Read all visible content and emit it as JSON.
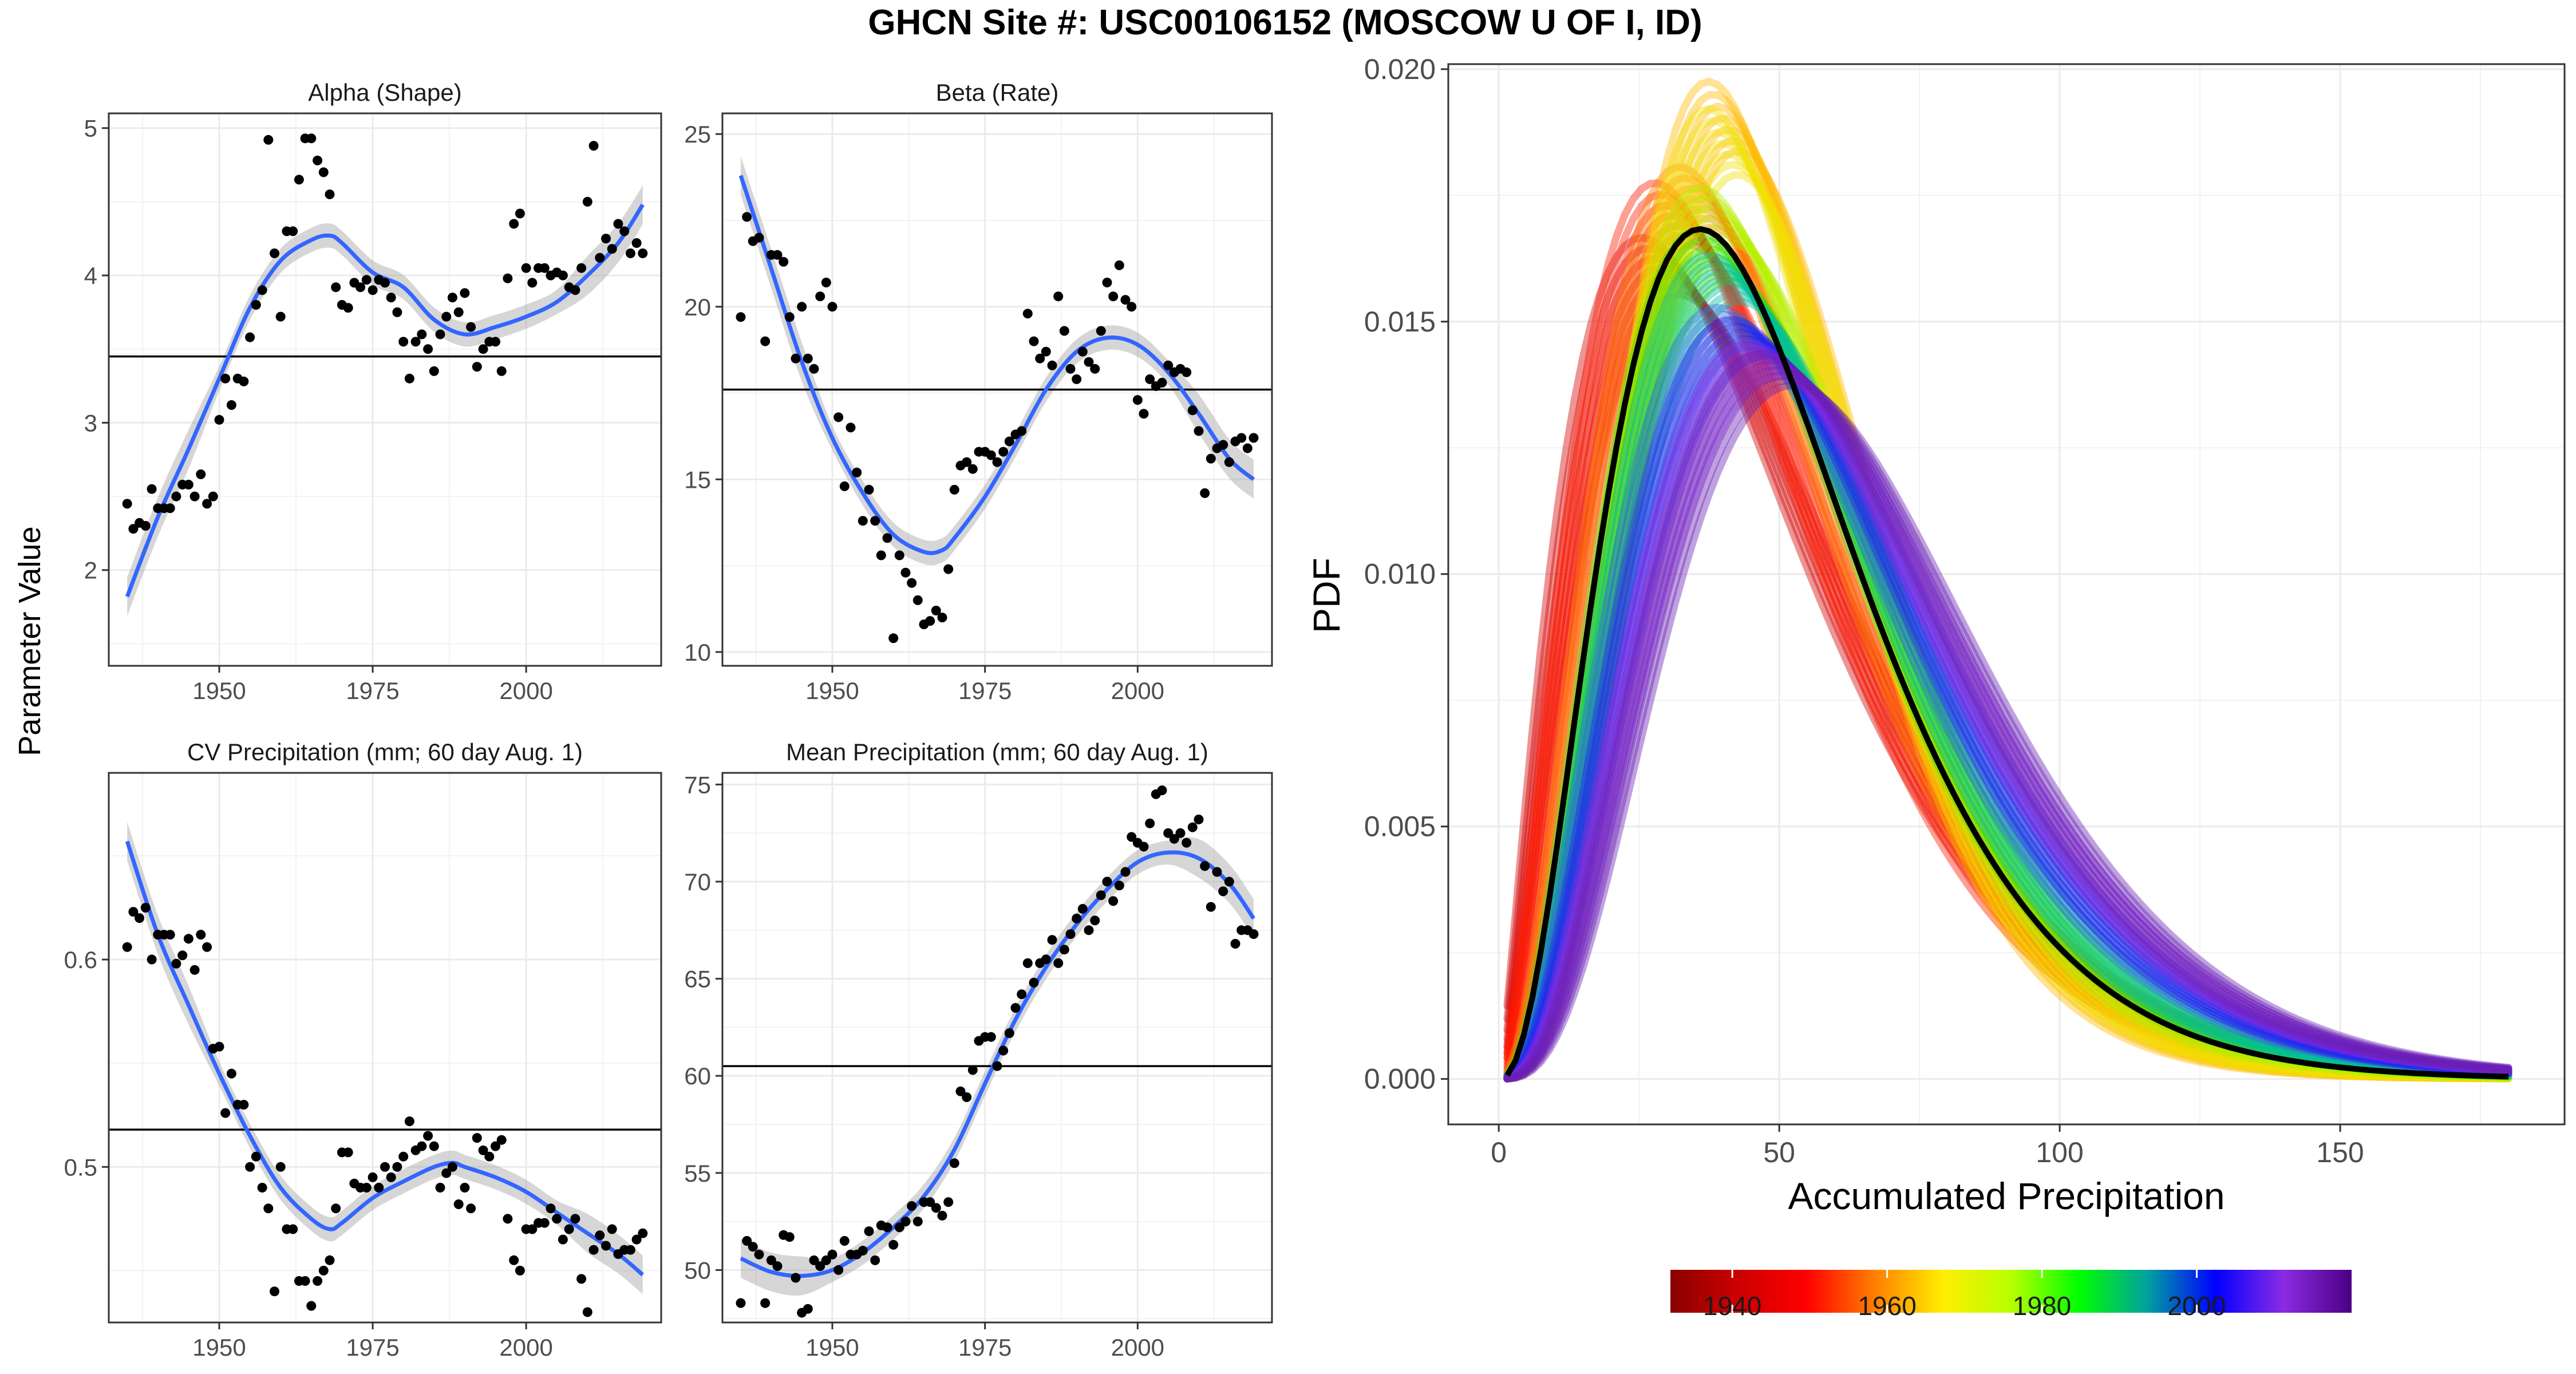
{
  "figure": {
    "title": "GHCN Site #: USC00106152 (MOSCOW U OF I, ID)",
    "left_ylabel": "Parameter Value"
  },
  "chart_data": [
    {
      "type": "scatter",
      "title": "Alpha (Shape)",
      "xlim": [
        1932,
        2022
      ],
      "ylim": [
        1.35,
        5.1
      ],
      "xticks": [
        1950,
        1975,
        2000
      ],
      "yticks": [
        2,
        3,
        4,
        5
      ],
      "hline": 3.45,
      "x": [
        1935,
        1936,
        1937,
        1938,
        1939,
        1940,
        1941,
        1942,
        1943,
        1944,
        1945,
        1946,
        1947,
        1948,
        1949,
        1950,
        1951,
        1952,
        1953,
        1954,
        1955,
        1956,
        1957,
        1958,
        1959,
        1960,
        1961,
        1962,
        1963,
        1964,
        1965,
        1966,
        1967,
        1968,
        1969,
        1970,
        1971,
        1972,
        1973,
        1974,
        1975,
        1976,
        1977,
        1978,
        1979,
        1980,
        1981,
        1982,
        1983,
        1984,
        1985,
        1986,
        1987,
        1988,
        1989,
        1990,
        1991,
        1992,
        1993,
        1994,
        1995,
        1996,
        1997,
        1998,
        1999,
        2000,
        2001,
        2002,
        2003,
        2004,
        2005,
        2006,
        2007,
        2008,
        2009,
        2010,
        2011,
        2012,
        2013,
        2014,
        2015,
        2016,
        2017,
        2018,
        2019
      ],
      "y": [
        2.45,
        2.28,
        2.32,
        2.3,
        2.55,
        2.42,
        2.42,
        2.42,
        2.5,
        2.58,
        2.58,
        2.5,
        2.65,
        2.45,
        2.5,
        3.02,
        3.3,
        3.12,
        3.3,
        3.28,
        3.58,
        3.8,
        3.9,
        4.92,
        4.15,
        3.72,
        4.3,
        4.3,
        4.65,
        4.93,
        4.93,
        4.78,
        4.7,
        4.55,
        3.92,
        3.8,
        3.78,
        3.95,
        3.92,
        3.97,
        3.9,
        3.97,
        3.95,
        3.85,
        3.75,
        3.55,
        3.3,
        3.55,
        3.6,
        3.5,
        3.35,
        3.6,
        3.72,
        3.85,
        3.75,
        3.88,
        3.65,
        3.38,
        3.5,
        3.55,
        3.55,
        3.35,
        3.98,
        4.35,
        4.42,
        4.05,
        3.95,
        4.05,
        4.05,
        4.0,
        4.02,
        4.0,
        3.92,
        3.9,
        4.05,
        4.5,
        4.88,
        4.12,
        4.25,
        4.18,
        4.35,
        4.3,
        4.15,
        4.22,
        4.15
      ],
      "smooth": [
        [
          1935,
          1.82
        ],
        [
          1940,
          2.36
        ],
        [
          1945,
          2.82
        ],
        [
          1950,
          3.3
        ],
        [
          1955,
          3.78
        ],
        [
          1960,
          4.1
        ],
        [
          1965,
          4.24
        ],
        [
          1968,
          4.27
        ],
        [
          1970,
          4.22
        ],
        [
          1975,
          4.02
        ],
        [
          1980,
          3.92
        ],
        [
          1985,
          3.7
        ],
        [
          1990,
          3.6
        ],
        [
          1995,
          3.65
        ],
        [
          2000,
          3.72
        ],
        [
          2005,
          3.82
        ],
        [
          2010,
          4.0
        ],
        [
          2015,
          4.22
        ],
        [
          2019,
          4.48
        ]
      ]
    },
    {
      "type": "scatter",
      "title": "Beta (Rate)",
      "xlim": [
        1932,
        2022
      ],
      "ylim": [
        9.6,
        25.6
      ],
      "xticks": [
        1950,
        1975,
        2000
      ],
      "yticks": [
        10,
        15,
        20,
        25
      ],
      "hline": 17.6,
      "x": [
        1935,
        1936,
        1937,
        1938,
        1939,
        1940,
        1941,
        1942,
        1943,
        1944,
        1945,
        1946,
        1947,
        1948,
        1949,
        1950,
        1951,
        1952,
        1953,
        1954,
        1955,
        1956,
        1957,
        1958,
        1959,
        1960,
        1961,
        1962,
        1963,
        1964,
        1965,
        1966,
        1967,
        1968,
        1969,
        1970,
        1971,
        1972,
        1973,
        1974,
        1975,
        1976,
        1977,
        1978,
        1979,
        1980,
        1981,
        1982,
        1983,
        1984,
        1985,
        1986,
        1987,
        1988,
        1989,
        1990,
        1991,
        1992,
        1993,
        1994,
        1995,
        1996,
        1997,
        1998,
        1999,
        2000,
        2001,
        2002,
        2003,
        2004,
        2005,
        2006,
        2007,
        2008,
        2009,
        2010,
        2011,
        2012,
        2013,
        2014,
        2015,
        2016,
        2017,
        2018,
        2019
      ],
      "y": [
        19.7,
        22.6,
        21.9,
        22.0,
        19.0,
        21.5,
        21.5,
        21.3,
        19.7,
        18.5,
        20.0,
        18.5,
        18.2,
        20.3,
        20.7,
        20.0,
        16.8,
        14.8,
        16.5,
        15.2,
        13.8,
        14.7,
        13.8,
        12.8,
        13.3,
        10.4,
        12.8,
        12.3,
        12.0,
        11.5,
        10.8,
        10.9,
        11.2,
        11.0,
        12.4,
        14.7,
        15.4,
        15.5,
        15.3,
        15.8,
        15.8,
        15.7,
        15.5,
        15.8,
        16.1,
        16.3,
        16.4,
        19.8,
        19.0,
        18.5,
        18.7,
        18.3,
        20.3,
        19.3,
        18.2,
        17.9,
        18.7,
        18.4,
        18.2,
        19.3,
        20.7,
        20.3,
        21.2,
        20.2,
        20.0,
        17.3,
        16.9,
        17.9,
        17.7,
        17.8,
        18.3,
        18.1,
        18.2,
        18.1,
        17.0,
        16.4,
        14.6,
        15.6,
        15.9,
        16.0,
        15.5,
        16.1,
        16.2,
        15.9,
        16.2
      ],
      "smooth": [
        [
          1935,
          23.8
        ],
        [
          1940,
          21.1
        ],
        [
          1945,
          18.4
        ],
        [
          1950,
          16.2
        ],
        [
          1955,
          14.6
        ],
        [
          1960,
          13.4
        ],
        [
          1965,
          12.9
        ],
        [
          1968,
          12.95
        ],
        [
          1970,
          13.3
        ],
        [
          1975,
          14.5
        ],
        [
          1980,
          16.0
        ],
        [
          1985,
          17.6
        ],
        [
          1990,
          18.7
        ],
        [
          1995,
          19.1
        ],
        [
          2000,
          18.9
        ],
        [
          2005,
          18.1
        ],
        [
          2010,
          16.9
        ],
        [
          2015,
          15.6
        ],
        [
          2019,
          15.0
        ]
      ]
    },
    {
      "type": "scatter",
      "title": "CV Precipitation (mm; 60 day Aug. 1)",
      "xlim": [
        1932,
        2022
      ],
      "ylim": [
        0.425,
        0.69
      ],
      "xticks": [
        1950,
        1975,
        2000
      ],
      "yticks": [
        0.5,
        0.6
      ],
      "hline": 0.518,
      "x": [
        1935,
        1936,
        1937,
        1938,
        1939,
        1940,
        1941,
        1942,
        1943,
        1944,
        1945,
        1946,
        1947,
        1948,
        1949,
        1950,
        1951,
        1952,
        1953,
        1954,
        1955,
        1956,
        1957,
        1958,
        1959,
        1960,
        1961,
        1962,
        1963,
        1964,
        1965,
        1966,
        1967,
        1968,
        1969,
        1970,
        1971,
        1972,
        1973,
        1974,
        1975,
        1976,
        1977,
        1978,
        1979,
        1980,
        1981,
        1982,
        1983,
        1984,
        1985,
        1986,
        1987,
        1988,
        1989,
        1990,
        1991,
        1992,
        1993,
        1994,
        1995,
        1996,
        1997,
        1998,
        1999,
        2000,
        2001,
        2002,
        2003,
        2004,
        2005,
        2006,
        2007,
        2008,
        2009,
        2010,
        2011,
        2012,
        2013,
        2014,
        2015,
        2016,
        2017,
        2018,
        2019
      ],
      "y": [
        0.606,
        0.623,
        0.62,
        0.625,
        0.6,
        0.612,
        0.612,
        0.612,
        0.598,
        0.602,
        0.61,
        0.595,
        0.612,
        0.606,
        0.557,
        0.558,
        0.526,
        0.545,
        0.53,
        0.53,
        0.5,
        0.505,
        0.49,
        0.48,
        0.44,
        0.5,
        0.47,
        0.47,
        0.445,
        0.445,
        0.433,
        0.445,
        0.45,
        0.455,
        0.48,
        0.507,
        0.507,
        0.492,
        0.49,
        0.49,
        0.495,
        0.49,
        0.5,
        0.495,
        0.5,
        0.505,
        0.522,
        0.508,
        0.51,
        0.515,
        0.51,
        0.49,
        0.497,
        0.5,
        0.482,
        0.49,
        0.48,
        0.514,
        0.508,
        0.505,
        0.51,
        0.513,
        0.475,
        0.455,
        0.45,
        0.47,
        0.47,
        0.473,
        0.473,
        0.48,
        0.475,
        0.465,
        0.47,
        0.475,
        0.446,
        0.43,
        0.46,
        0.467,
        0.462,
        0.47,
        0.458,
        0.46,
        0.46,
        0.465,
        0.468
      ],
      "smooth": [
        [
          1935,
          0.657
        ],
        [
          1940,
          0.612
        ],
        [
          1945,
          0.578
        ],
        [
          1950,
          0.545
        ],
        [
          1955,
          0.515
        ],
        [
          1960,
          0.49
        ],
        [
          1965,
          0.475
        ],
        [
          1968,
          0.47
        ],
        [
          1970,
          0.473
        ],
        [
          1975,
          0.485
        ],
        [
          1980,
          0.493
        ],
        [
          1985,
          0.5
        ],
        [
          1988,
          0.502
        ],
        [
          1990,
          0.5
        ],
        [
          1995,
          0.495
        ],
        [
          2000,
          0.488
        ],
        [
          2005,
          0.478
        ],
        [
          2010,
          0.468
        ],
        [
          2015,
          0.458
        ],
        [
          2019,
          0.448
        ]
      ]
    },
    {
      "type": "scatter",
      "title": "Mean Precipitation (mm; 60 day Aug. 1)",
      "xlim": [
        1932,
        2022
      ],
      "ylim": [
        47.3,
        75.6
      ],
      "xticks": [
        1950,
        1975,
        2000
      ],
      "yticks": [
        50,
        55,
        60,
        65,
        70,
        75
      ],
      "hline": 60.5,
      "x": [
        1935,
        1936,
        1937,
        1938,
        1939,
        1940,
        1941,
        1942,
        1943,
        1944,
        1945,
        1946,
        1947,
        1948,
        1949,
        1950,
        1951,
        1952,
        1953,
        1954,
        1955,
        1956,
        1957,
        1958,
        1959,
        1960,
        1961,
        1962,
        1963,
        1964,
        1965,
        1966,
        1967,
        1968,
        1969,
        1970,
        1971,
        1972,
        1973,
        1974,
        1975,
        1976,
        1977,
        1978,
        1979,
        1980,
        1981,
        1982,
        1983,
        1984,
        1985,
        1986,
        1987,
        1988,
        1989,
        1990,
        1991,
        1992,
        1993,
        1994,
        1995,
        1996,
        1997,
        1998,
        1999,
        2000,
        2001,
        2002,
        2003,
        2004,
        2005,
        2006,
        2007,
        2008,
        2009,
        2010,
        2011,
        2012,
        2013,
        2014,
        2015,
        2016,
        2017,
        2018,
        2019
      ],
      "y": [
        48.3,
        51.5,
        51.2,
        50.8,
        48.3,
        50.5,
        50.2,
        51.8,
        51.7,
        49.6,
        47.8,
        48.0,
        50.5,
        50.2,
        50.5,
        50.8,
        50.0,
        51.5,
        50.8,
        50.8,
        51.0,
        52.0,
        50.5,
        52.3,
        52.2,
        51.3,
        52.2,
        52.5,
        53.3,
        52.5,
        53.5,
        53.5,
        53.2,
        52.8,
        53.5,
        55.5,
        59.2,
        58.9,
        60.3,
        61.8,
        62.0,
        62.0,
        60.5,
        61.3,
        62.2,
        63.5,
        64.2,
        65.8,
        64.8,
        65.8,
        66.0,
        67.0,
        65.8,
        66.5,
        67.3,
        68.1,
        68.6,
        67.5,
        68.0,
        69.3,
        70.0,
        69.0,
        69.8,
        70.5,
        72.3,
        72.0,
        71.8,
        73.0,
        74.5,
        74.7,
        72.5,
        72.2,
        72.5,
        72.0,
        72.8,
        73.2,
        70.8,
        68.7,
        70.5,
        69.5,
        70.0,
        66.8,
        67.5,
        67.5,
        67.3
      ],
      "smooth": [
        [
          1935,
          50.6
        ],
        [
          1940,
          49.9
        ],
        [
          1945,
          49.7
        ],
        [
          1950,
          50.0
        ],
        [
          1955,
          50.9
        ],
        [
          1960,
          52.2
        ],
        [
          1965,
          53.8
        ],
        [
          1970,
          56.2
        ],
        [
          1975,
          59.6
        ],
        [
          1980,
          62.9
        ],
        [
          1985,
          65.6
        ],
        [
          1990,
          67.8
        ],
        [
          1995,
          69.6
        ],
        [
          2000,
          71.0
        ],
        [
          2005,
          71.5
        ],
        [
          2010,
          71.2
        ],
        [
          2015,
          69.9
        ],
        [
          2019,
          68.1
        ]
      ]
    },
    {
      "type": "line",
      "xlabel": "Accumulated Precipitation",
      "ylabel": "PDF",
      "xlim": [
        -9,
        190
      ],
      "ylim": [
        -0.0009,
        0.0201
      ],
      "xticks": [
        0,
        50,
        100,
        150
      ],
      "yticks": [
        0.0,
        0.005,
        0.01,
        0.015,
        0.02
      ],
      "ytick_labels": [
        "0.000",
        "0.005",
        "0.010",
        "0.015",
        "0.020"
      ],
      "grid": true,
      "curve_model": "gamma",
      "x_range": [
        1.5,
        181
      ],
      "overall": {
        "alpha": 3.45,
        "mean": 50.5,
        "color": "#000000"
      },
      "series": [
        {
          "year": 1938,
          "alpha": 2.5,
          "mean": 48,
          "color": "#d40000"
        },
        {
          "year": 1945,
          "alpha": 2.9,
          "mean": 47,
          "color": "#ff1a00"
        },
        {
          "year": 1955,
          "alpha": 3.5,
          "mean": 49,
          "color": "#ff7700"
        },
        {
          "year": 1962,
          "alpha": 4.8,
          "mean": 50.5,
          "color": "#ffbb00"
        },
        {
          "year": 1966,
          "alpha": 4.6,
          "mean": 51,
          "color": "#f0e000"
        },
        {
          "year": 1972,
          "alpha": 3.9,
          "mean": 52,
          "color": "#b8ef00"
        },
        {
          "year": 1980,
          "alpha": 3.6,
          "mean": 53,
          "color": "#33dd00"
        },
        {
          "year": 1988,
          "alpha": 3.7,
          "mean": 55,
          "color": "#00bfa0"
        },
        {
          "year": 1995,
          "alpha": 3.6,
          "mean": 58,
          "color": "#2d6ad8"
        },
        {
          "year": 2002,
          "alpha": 3.8,
          "mean": 60,
          "color": "#2020f0"
        },
        {
          "year": 2010,
          "alpha": 4.0,
          "mean": 63,
          "color": "#8a2be2"
        },
        {
          "year": 2018,
          "alpha": 4.2,
          "mean": 65,
          "color": "#6a1fb5"
        }
      ],
      "colorbar": {
        "ticks": [
          1940,
          1960,
          1980,
          2000
        ],
        "range": [
          1932,
          2020
        ],
        "stops": [
          "#8b0000",
          "#cc0000",
          "#ff0000",
          "#ff7f00",
          "#ffee00",
          "#b8ff00",
          "#00ff00",
          "#00a0a0",
          "#0000ff",
          "#8a2be2",
          "#4b0082"
        ]
      }
    }
  ]
}
